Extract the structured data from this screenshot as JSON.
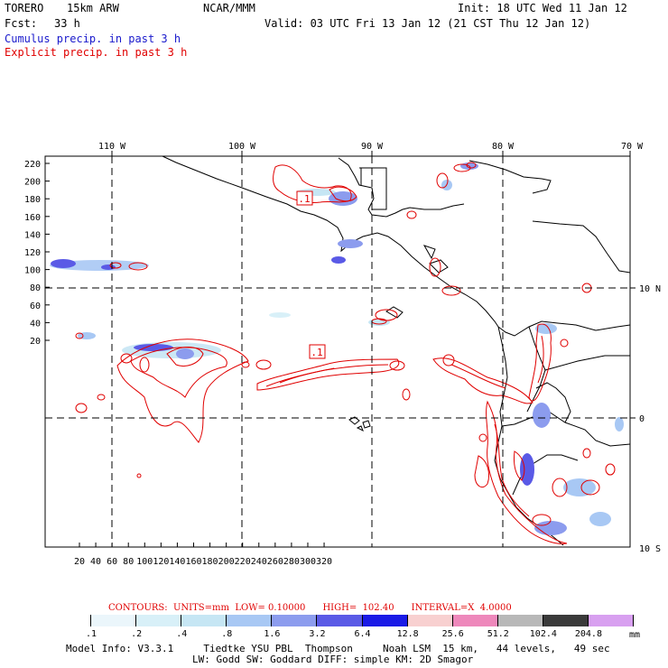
{
  "header": {
    "model": "TORERO",
    "resolution": "15km ARW",
    "org": "NCAR/MMM",
    "init": "Init: 18 UTC Wed 11 Jan 12",
    "fcst_label": "Fcst:",
    "fcst_value": "33 h",
    "valid": "Valid: 03 UTC Fri 13 Jan 12 (21 CST Thu 12 Jan 12)",
    "line_blue": "Cumulus precip. in past 3 h",
    "line_red": "Explicit precip. in past 3 h"
  },
  "map": {
    "top_lon_labels": [
      "110 W",
      "100 W",
      "90 W",
      "80 W",
      "70 W"
    ],
    "right_lat_labels": [
      "10 N",
      "0",
      "10 S"
    ],
    "y_ticks": [
      "220",
      "200",
      "180",
      "160",
      "140",
      "120",
      "100",
      "80",
      "60",
      "40",
      "20"
    ],
    "x_ticks": [
      "20",
      "40",
      "60",
      "80",
      "100",
      "120",
      "140",
      "160",
      "180",
      "200",
      "220",
      "240",
      "260",
      "280",
      "300",
      "320"
    ],
    "contour_labels": [
      ".1",
      ".1"
    ]
  },
  "footer": {
    "contours_line": "CONTOURS:  UNITS=mm  LOW= 0.10000      HIGH=  102.40      INTERVAL=X  4.0000",
    "colorbar_values": [
      ".1",
      ".2",
      ".4",
      ".8",
      "1.6",
      "3.2",
      "6.4",
      "12.8",
      "25.6",
      "51.2",
      "102.4",
      "204.8"
    ],
    "colorbar_unit": "mm",
    "colorbar_colors": [
      "#ffffff",
      "#ebf6fb",
      "#d8f0f8",
      "#c6e6f4",
      "#a8c8f4",
      "#8c9cee",
      "#5a5ae6",
      "#1a1ae6",
      "#f8d0d0",
      "#ee88bb",
      "#b8b8b8",
      "#3a3a3a",
      "#d8a0f0"
    ],
    "model_info_1": "Model Info: V3.3.1     Tiedtke YSU PBL  Thompson     Noah LSM  15 km,   44 levels,   49 sec",
    "model_info_2": "LW: Godd SW: Goddard DIFF: simple KM: 2D Smagor"
  }
}
